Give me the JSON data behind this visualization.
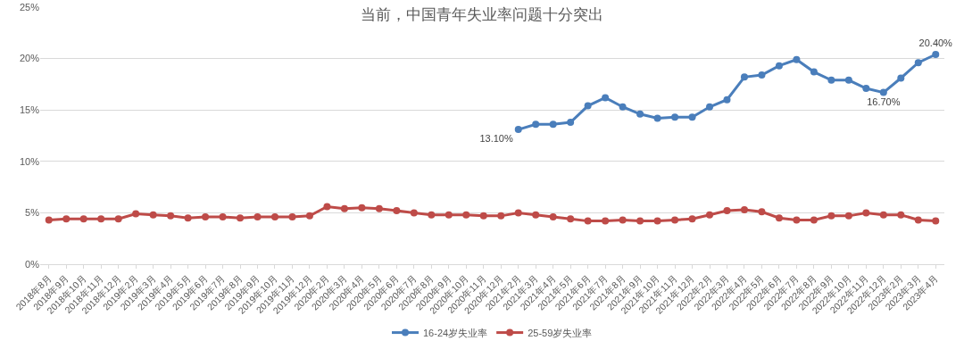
{
  "chart_data": {
    "type": "line",
    "title": "当前，中国青年失业率问题十分突出",
    "categories": [
      "2018年8月",
      "2018年9月",
      "2018年10月",
      "2018年11月",
      "2018年12月",
      "2019年2月",
      "2019年3月",
      "2019年4月",
      "2019年5月",
      "2019年6月",
      "2019年7月",
      "2019年8月",
      "2019年9月",
      "2019年10月",
      "2019年11月",
      "2019年12月",
      "2020年2月",
      "2020年3月",
      "2020年4月",
      "2020年5月",
      "2020年6月",
      "2020年7月",
      "2020年8月",
      "2020年9月",
      "2020年10月",
      "2020年11月",
      "2020年12月",
      "2021年2月",
      "2021年3月",
      "2021年4月",
      "2021年5月",
      "2021年6月",
      "2021年7月",
      "2021年8月",
      "2021年9月",
      "2021年10月",
      "2021年11月",
      "2021年12月",
      "2022年2月",
      "2022年3月",
      "2022年4月",
      "2022年5月",
      "2022年6月",
      "2022年7月",
      "2022年8月",
      "2022年9月",
      "2022年10月",
      "2022年11月",
      "2022年12月",
      "2023年2月",
      "2023年3月",
      "2023年4月"
    ],
    "series": [
      {
        "name": "16-24岁失业率",
        "color": "#4a7ebb",
        "values": [
          null,
          null,
          null,
          null,
          null,
          null,
          null,
          null,
          null,
          null,
          null,
          null,
          null,
          null,
          null,
          null,
          null,
          null,
          null,
          null,
          null,
          null,
          null,
          null,
          null,
          null,
          null,
          13.1,
          13.6,
          13.6,
          13.8,
          15.4,
          16.2,
          15.3,
          14.6,
          14.2,
          14.3,
          14.3,
          15.3,
          16.0,
          18.2,
          18.4,
          19.3,
          19.9,
          18.7,
          17.9,
          17.9,
          17.1,
          16.7,
          18.1,
          19.6,
          20.4
        ],
        "value_labels": [
          null,
          null,
          null,
          null,
          null,
          null,
          null,
          null,
          null,
          null,
          null,
          null,
          null,
          null,
          null,
          null,
          null,
          null,
          null,
          null,
          null,
          null,
          null,
          null,
          null,
          null,
          null,
          "13.10%",
          null,
          null,
          null,
          null,
          null,
          null,
          null,
          null,
          null,
          null,
          null,
          null,
          null,
          null,
          null,
          null,
          null,
          null,
          null,
          null,
          "16.70%",
          null,
          null,
          "20.40%"
        ]
      },
      {
        "name": "25-59岁失业率",
        "color": "#be4b48",
        "values": [
          4.3,
          4.4,
          4.4,
          4.4,
          4.4,
          4.9,
          4.8,
          4.7,
          4.5,
          4.6,
          4.6,
          4.5,
          4.6,
          4.6,
          4.6,
          4.7,
          5.6,
          5.4,
          5.5,
          5.4,
          5.2,
          5.0,
          4.8,
          4.8,
          4.8,
          4.7,
          4.7,
          5.0,
          4.8,
          4.6,
          4.4,
          4.2,
          4.2,
          4.3,
          4.2,
          4.2,
          4.3,
          4.4,
          4.8,
          5.2,
          5.3,
          5.1,
          4.5,
          4.3,
          4.3,
          4.7,
          4.7,
          5.0,
          4.8,
          4.8,
          4.3,
          4.2
        ]
      }
    ],
    "ylim": [
      0,
      25
    ],
    "yticks": [
      {
        "value": 0,
        "label": "0%"
      },
      {
        "value": 5,
        "label": "5%"
      },
      {
        "value": 10,
        "label": "10%"
      },
      {
        "value": 15,
        "label": "15%"
      },
      {
        "value": 20,
        "label": "20%"
      },
      {
        "value": 25,
        "label": "25%"
      }
    ],
    "grid": "y",
    "legend": "bottom",
    "marker": "circle",
    "line_style": "solid"
  }
}
